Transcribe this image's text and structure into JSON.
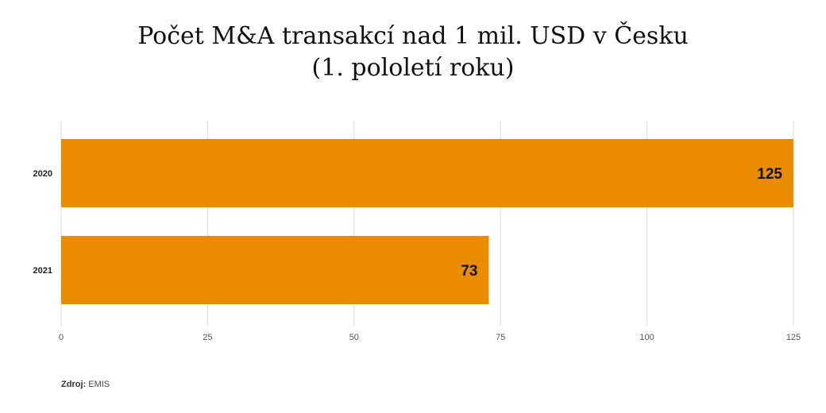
{
  "title_line1": "Počet M&A transakcí nad 1 mil. USD v Česku",
  "title_line2": "(1. pololetí roku)",
  "source_label": "Zdroj:",
  "source_value": "EMIS",
  "chart_data": {
    "type": "bar",
    "orientation": "horizontal",
    "categories": [
      "2020",
      "2021"
    ],
    "values": [
      125,
      73
    ],
    "xlim": [
      0,
      125
    ],
    "xticks": [
      0,
      25,
      50,
      75,
      100,
      125
    ],
    "grid": true,
    "bar_color": "#EA8C00"
  }
}
